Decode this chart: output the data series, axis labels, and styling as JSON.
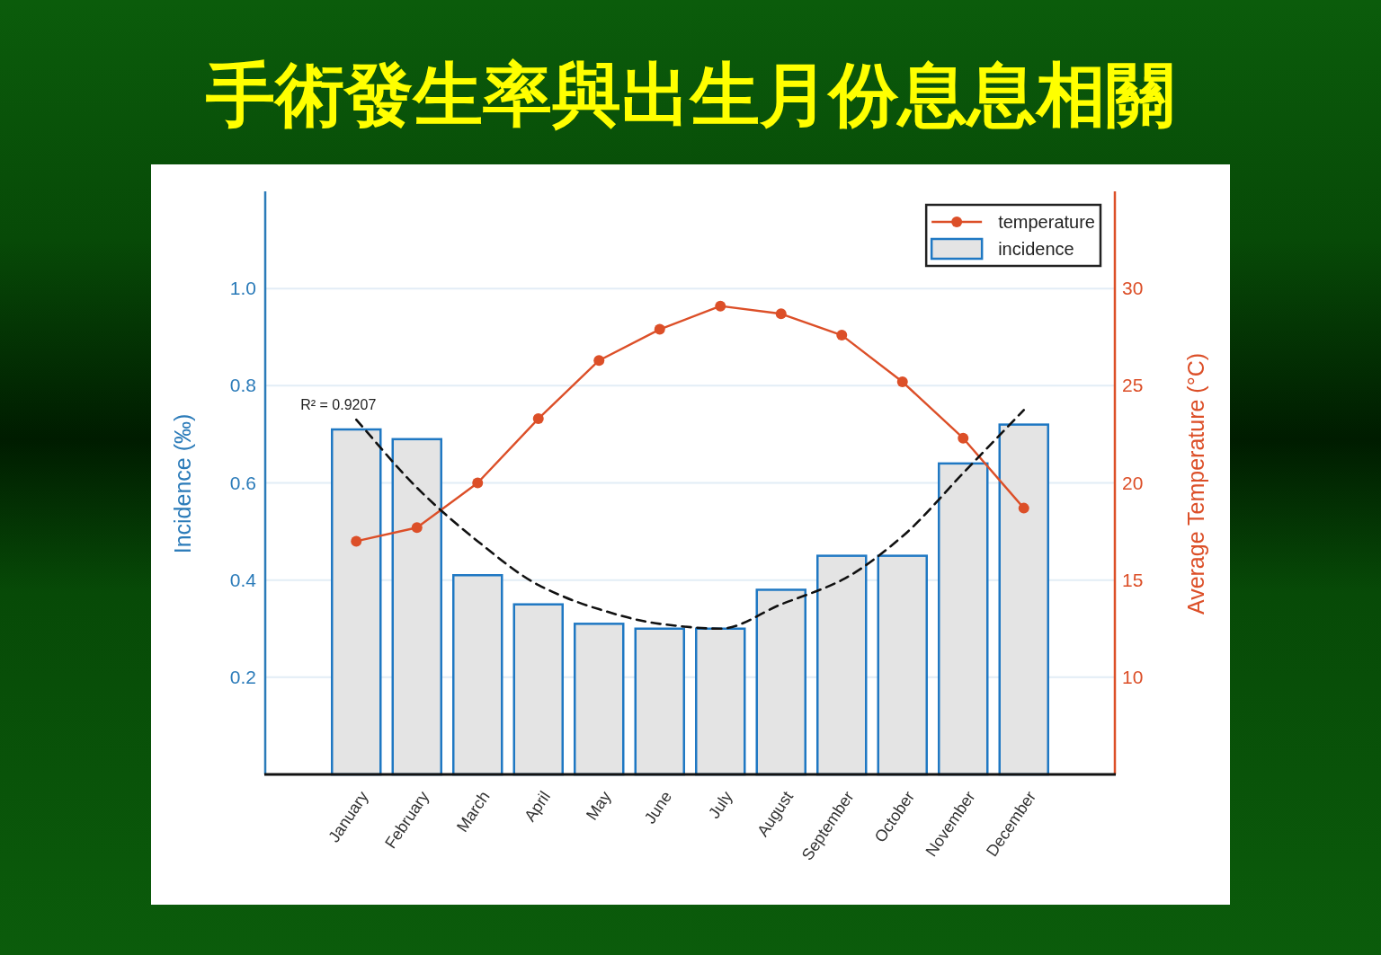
{
  "chart_data": {
    "type": "bar",
    "title": "手術發生率與出生月份息息相關",
    "ylabel": "Incidence (‰)",
    "y2label": "Average Temperature (°C)",
    "categories": [
      "January",
      "February",
      "March",
      "April",
      "May",
      "June",
      "July",
      "August",
      "September",
      "October",
      "November",
      "December"
    ],
    "series": [
      {
        "name": "temperature",
        "type": "line",
        "axis": "y2",
        "color": "#dc4f28",
        "marker": "circle",
        "line_style": "solid",
        "values": [
          17.0,
          17.7,
          20.0,
          23.3,
          26.3,
          27.9,
          29.1,
          28.7,
          27.6,
          25.2,
          22.3,
          18.7
        ]
      },
      {
        "name": "incidence",
        "color": "#e4e4e4",
        "values": [
          0.71,
          0.69,
          0.41,
          0.35,
          0.31,
          0.3,
          0.3,
          0.38,
          0.45,
          0.45,
          0.64,
          0.72
        ]
      },
      {
        "type": "line",
        "color": "#111111",
        "marker": "none",
        "line_style": "dashed",
        "x": [
          "January",
          "February",
          "March",
          "April",
          "May",
          "June",
          "July",
          "August",
          "September",
          "October",
          "November",
          "December"
        ],
        "values": [
          0.73,
          0.59,
          0.48,
          0.39,
          0.34,
          0.31,
          0.3,
          0.35,
          0.4,
          0.49,
          0.62,
          0.75
        ]
      }
    ],
    "ylim": [
      0,
      1.2
    ],
    "yticks": [
      0.2,
      0.4,
      0.6,
      0.8,
      {
        "value": 1,
        "label": "1.0"
      }
    ],
    "y2lim": [
      5,
      35
    ],
    "y2ticks": [
      10,
      15,
      20,
      25,
      30
    ],
    "grid": "y",
    "legend": "top right",
    "annotations": [
      "R² = 0.9207"
    ]
  }
}
